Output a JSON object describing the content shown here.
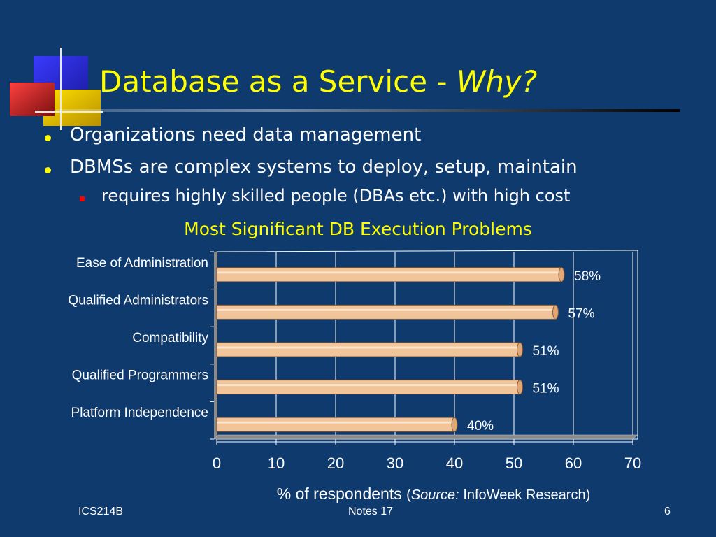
{
  "slide": {
    "title_main": "Database as a Service - ",
    "title_emph": "Why?",
    "bullets": [
      "Organizations need data management",
      "DBMSs are complex systems to deploy, setup, maintain"
    ],
    "sub_bullet": "requires highly skilled people (DBAs etc.) with high cost"
  },
  "chart_data": {
    "type": "bar",
    "orientation": "horizontal",
    "title": "Most Significant DB Execution Problems",
    "categories": [
      "Ease of Administration",
      "Qualified Administrators",
      "Compatibility",
      "Qualified Programmers",
      "Platform Independence"
    ],
    "values": [
      58,
      57,
      51,
      51,
      40
    ],
    "data_labels": [
      "58%",
      "57%",
      "51%",
      "51%",
      "40%"
    ],
    "xlim": [
      0,
      70
    ],
    "xticks": [
      0,
      10,
      20,
      30,
      40,
      50,
      60,
      70
    ],
    "xlabel": "% of respondents",
    "source_prefix": "Source:",
    "source_text": "InfoWeek Research)",
    "source_open": "(",
    "grid": true,
    "bar_color": "#f2c49a"
  },
  "footer": {
    "left": "ICS214B",
    "center": "Notes 17",
    "page": "6"
  },
  "colors": {
    "background": "#0f3a6e",
    "title": "#ffff00",
    "text": "#ffffff"
  }
}
